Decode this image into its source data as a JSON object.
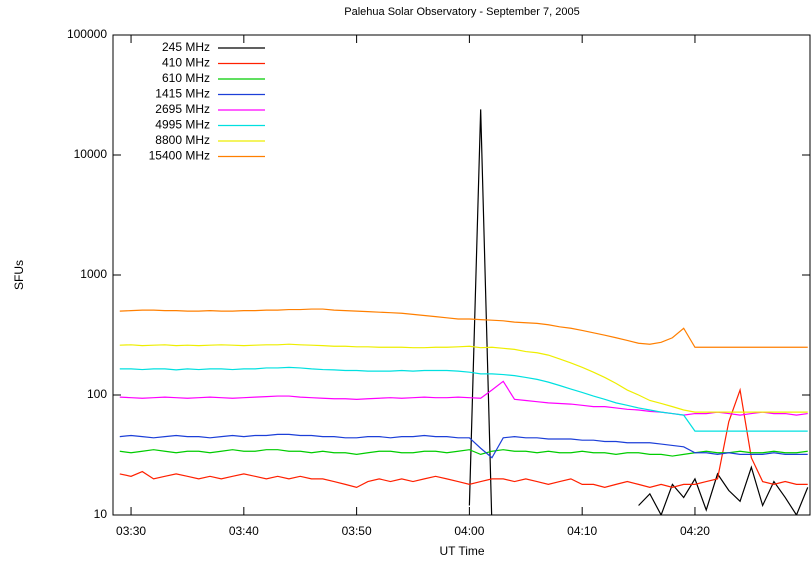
{
  "chart_data": {
    "type": "line",
    "title": "Palehua Solar Observatory - September 7, 2005",
    "x_label": "UT Time",
    "y_label": "SFUs",
    "log_y": true,
    "legend": "upper-left",
    "xlim": [
      208.4,
      270.2
    ],
    "xticks": [
      {
        "value": 210,
        "label": "03:30"
      },
      {
        "value": 220,
        "label": "03:40"
      },
      {
        "value": 230,
        "label": "03:50"
      },
      {
        "value": 240,
        "label": "04:00"
      },
      {
        "value": 250,
        "label": "04:10"
      },
      {
        "value": 260,
        "label": "04:20"
      }
    ],
    "ylim": [
      10,
      100000
    ],
    "yticks": [
      10,
      100,
      1000,
      10000,
      100000
    ],
    "x": [
      209,
      210,
      211,
      212,
      213,
      214,
      215,
      216,
      217,
      218,
      219,
      220,
      221,
      222,
      223,
      224,
      225,
      226,
      227,
      228,
      229,
      230,
      231,
      232,
      233,
      234,
      235,
      236,
      237,
      238,
      239,
      240,
      241,
      242,
      243,
      244,
      245,
      246,
      247,
      248,
      249,
      250,
      251,
      252,
      253,
      254,
      255,
      256,
      257,
      258,
      259,
      260,
      261,
      262,
      263,
      264,
      265,
      266,
      267,
      268,
      269,
      270
    ],
    "series": [
      {
        "name": "245 MHz",
        "color": "#000000",
        "values": [
          null,
          null,
          null,
          null,
          null,
          null,
          null,
          null,
          null,
          null,
          null,
          null,
          null,
          null,
          null,
          null,
          null,
          null,
          null,
          null,
          null,
          null,
          null,
          null,
          null,
          null,
          null,
          null,
          null,
          null,
          null,
          12,
          24000,
          8,
          null,
          null,
          null,
          null,
          null,
          null,
          null,
          null,
          null,
          null,
          null,
          null,
          12,
          15,
          10,
          18,
          14,
          20,
          11,
          22,
          16,
          13,
          25,
          12,
          19,
          14,
          10,
          17
        ]
      },
      {
        "name": "410 MHz",
        "color": "#ff2000",
        "values": [
          22,
          21,
          23,
          20,
          21,
          22,
          21,
          20,
          21,
          20,
          21,
          22,
          21,
          20,
          21,
          20,
          21,
          20,
          20,
          19,
          18,
          17,
          19,
          20,
          19,
          20,
          19,
          20,
          21,
          20,
          19,
          18,
          19,
          20,
          20,
          19,
          20,
          19,
          18,
          19,
          20,
          18,
          18,
          17,
          18,
          19,
          18,
          17,
          18,
          17,
          18,
          18,
          19,
          20,
          60,
          110,
          30,
          19,
          18,
          19,
          18,
          18
        ]
      },
      {
        "name": "610 MHz",
        "color": "#00cc00",
        "values": [
          34,
          33,
          34,
          35,
          34,
          33,
          34,
          34,
          33,
          34,
          35,
          34,
          34,
          35,
          35,
          34,
          34,
          33,
          34,
          33,
          33,
          32,
          33,
          34,
          34,
          33,
          33,
          34,
          34,
          33,
          34,
          35,
          32,
          34,
          35,
          34,
          34,
          33,
          34,
          33,
          33,
          34,
          33,
          33,
          32,
          33,
          33,
          32,
          32,
          31,
          32,
          33,
          34,
          33,
          33,
          34,
          33,
          33,
          34,
          33,
          33,
          34
        ]
      },
      {
        "name": "1415 MHz",
        "color": "#1c3fd8",
        "values": [
          45,
          46,
          45,
          44,
          45,
          46,
          45,
          45,
          44,
          45,
          46,
          45,
          46,
          46,
          47,
          47,
          46,
          46,
          45,
          45,
          44,
          44,
          45,
          45,
          44,
          45,
          45,
          46,
          45,
          45,
          44,
          44,
          36,
          30,
          44,
          45,
          44,
          44,
          43,
          43,
          43,
          42,
          42,
          41,
          41,
          40,
          40,
          40,
          39,
          38,
          37,
          33,
          33,
          32,
          33,
          32,
          32,
          32,
          33,
          32,
          32,
          32
        ]
      },
      {
        "name": "2695 MHz",
        "color": "#ff00ff",
        "values": [
          96,
          95,
          94,
          95,
          96,
          95,
          94,
          95,
          96,
          95,
          94,
          95,
          96,
          97,
          98,
          98,
          96,
          95,
          94,
          93,
          93,
          92,
          93,
          94,
          95,
          94,
          95,
          96,
          95,
          95,
          96,
          95,
          94,
          110,
          130,
          92,
          90,
          88,
          86,
          85,
          84,
          82,
          80,
          80,
          78,
          76,
          75,
          73,
          72,
          70,
          68,
          70,
          70,
          72,
          70,
          68,
          70,
          72,
          70,
          70,
          68,
          70
        ]
      },
      {
        "name": "4995 MHz",
        "color": "#00e0e0",
        "values": [
          165,
          165,
          163,
          165,
          165,
          162,
          165,
          163,
          165,
          165,
          163,
          165,
          165,
          168,
          168,
          170,
          168,
          165,
          163,
          162,
          160,
          160,
          158,
          158,
          158,
          160,
          158,
          160,
          160,
          160,
          158,
          155,
          150,
          150,
          148,
          145,
          140,
          135,
          128,
          120,
          112,
          105,
          98,
          92,
          86,
          82,
          78,
          75,
          72,
          70,
          68,
          50,
          50,
          50,
          50,
          50,
          50,
          50,
          50,
          50,
          50,
          50
        ]
      },
      {
        "name": "8800 MHz",
        "color": "#eeee00",
        "values": [
          260,
          262,
          258,
          260,
          262,
          258,
          260,
          258,
          260,
          262,
          260,
          258,
          260,
          262,
          262,
          265,
          262,
          260,
          258,
          255,
          255,
          252,
          252,
          250,
          250,
          250,
          248,
          248,
          250,
          250,
          252,
          255,
          248,
          250,
          245,
          240,
          230,
          225,
          215,
          200,
          185,
          170,
          155,
          140,
          125,
          110,
          100,
          90,
          85,
          80,
          75,
          72,
          72,
          72,
          72,
          72,
          72,
          72,
          72,
          72,
          72,
          72
        ]
      },
      {
        "name": "15400 MHz",
        "color": "#ff7f00",
        "values": [
          500,
          505,
          510,
          510,
          505,
          505,
          500,
          500,
          505,
          500,
          500,
          505,
          505,
          510,
          510,
          515,
          515,
          520,
          520,
          510,
          505,
          500,
          495,
          490,
          485,
          480,
          470,
          460,
          450,
          440,
          430,
          430,
          425,
          420,
          415,
          405,
          400,
          395,
          385,
          370,
          360,
          345,
          330,
          315,
          300,
          285,
          270,
          265,
          275,
          300,
          360,
          250,
          250,
          250,
          250,
          250,
          250,
          250,
          250,
          250,
          250,
          250
        ]
      }
    ]
  }
}
